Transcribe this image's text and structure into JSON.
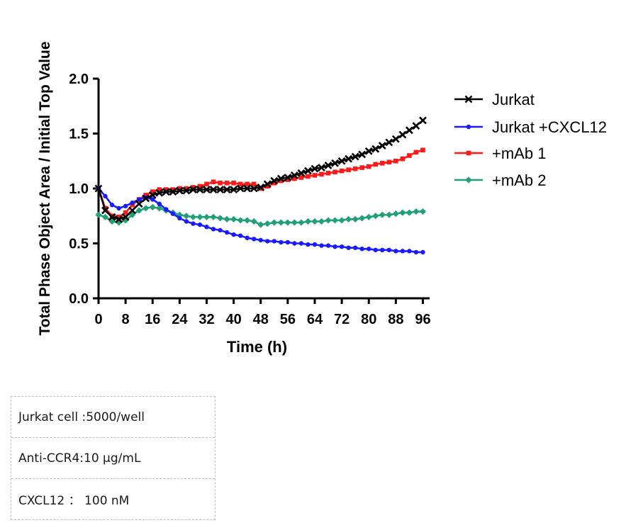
{
  "chart_data": {
    "type": "line",
    "title": "",
    "xlabel": "Time (h)",
    "ylabel": "Total Phase Object Area / Initial Top Value",
    "xlim": [
      0,
      98
    ],
    "ylim": [
      0,
      2.0
    ],
    "xticks": [
      0,
      8,
      16,
      24,
      32,
      40,
      48,
      56,
      64,
      72,
      80,
      88,
      96
    ],
    "yticks": [
      0.0,
      0.5,
      1.0,
      1.5,
      2.0
    ],
    "ytick_labels": [
      "0.0",
      "0.5",
      "1.0",
      "1.5",
      "2.0"
    ],
    "grid": false,
    "legend_position": "top-right",
    "x": [
      0,
      2,
      4,
      6,
      8,
      10,
      12,
      14,
      16,
      18,
      20,
      22,
      24,
      26,
      28,
      30,
      32,
      34,
      36,
      38,
      40,
      42,
      44,
      46,
      48,
      50,
      52,
      54,
      56,
      58,
      60,
      62,
      64,
      66,
      68,
      70,
      72,
      74,
      76,
      78,
      80,
      82,
      84,
      86,
      88,
      90,
      92,
      94,
      96
    ],
    "series": [
      {
        "name": "Jurkat",
        "color": "#000000",
        "marker": "x",
        "values": [
          1.0,
          0.8,
          0.74,
          0.72,
          0.74,
          0.8,
          0.86,
          0.91,
          0.94,
          0.96,
          0.97,
          0.97,
          0.98,
          0.98,
          0.99,
          0.99,
          0.99,
          0.99,
          0.99,
          0.99,
          0.99,
          1.0,
          1.0,
          1.0,
          1.01,
          1.04,
          1.07,
          1.09,
          1.1,
          1.12,
          1.14,
          1.16,
          1.18,
          1.19,
          1.21,
          1.23,
          1.25,
          1.27,
          1.29,
          1.31,
          1.34,
          1.36,
          1.39,
          1.42,
          1.45,
          1.49,
          1.53,
          1.57,
          1.62
        ]
      },
      {
        "name": "Jurkat +CXCL12",
        "color": "#1a1aff",
        "marker": "circle",
        "values": [
          1.0,
          0.93,
          0.85,
          0.82,
          0.84,
          0.87,
          0.9,
          0.92,
          0.9,
          0.86,
          0.81,
          0.77,
          0.73,
          0.7,
          0.68,
          0.67,
          0.65,
          0.63,
          0.62,
          0.6,
          0.58,
          0.57,
          0.55,
          0.54,
          0.53,
          0.52,
          0.52,
          0.51,
          0.51,
          0.5,
          0.5,
          0.49,
          0.49,
          0.48,
          0.48,
          0.47,
          0.47,
          0.46,
          0.46,
          0.45,
          0.45,
          0.44,
          0.44,
          0.44,
          0.43,
          0.43,
          0.43,
          0.42,
          0.42
        ]
      },
      {
        "name": "+mAb 1",
        "color": "#ff1a1a",
        "marker": "square",
        "values": [
          1.0,
          0.82,
          0.75,
          0.74,
          0.78,
          0.85,
          0.9,
          0.94,
          0.97,
          0.99,
          0.99,
          0.99,
          1.0,
          1.0,
          1.01,
          1.02,
          1.04,
          1.06,
          1.05,
          1.05,
          1.05,
          1.04,
          1.04,
          1.04,
          1.0,
          1.02,
          1.05,
          1.07,
          1.08,
          1.09,
          1.1,
          1.11,
          1.12,
          1.13,
          1.14,
          1.15,
          1.16,
          1.17,
          1.18,
          1.19,
          1.2,
          1.22,
          1.23,
          1.24,
          1.25,
          1.27,
          1.3,
          1.33,
          1.35
        ]
      },
      {
        "name": "+mAb 2",
        "color": "#1fa078",
        "marker": "diamond",
        "values": [
          0.76,
          0.74,
          0.7,
          0.69,
          0.71,
          0.76,
          0.8,
          0.82,
          0.83,
          0.82,
          0.8,
          0.78,
          0.76,
          0.75,
          0.74,
          0.74,
          0.74,
          0.74,
          0.73,
          0.72,
          0.72,
          0.71,
          0.71,
          0.7,
          0.67,
          0.68,
          0.69,
          0.69,
          0.69,
          0.69,
          0.69,
          0.7,
          0.7,
          0.7,
          0.71,
          0.71,
          0.71,
          0.72,
          0.72,
          0.73,
          0.74,
          0.75,
          0.76,
          0.76,
          0.77,
          0.78,
          0.78,
          0.79,
          0.79
        ]
      }
    ]
  },
  "info": {
    "rows": [
      {
        "text": "Jurkat cell :5000/well"
      },
      {
        "text": "Anti-CCR4:10 μg/mL"
      },
      {
        "text": "CXCL12 ：  100 nM"
      }
    ]
  }
}
